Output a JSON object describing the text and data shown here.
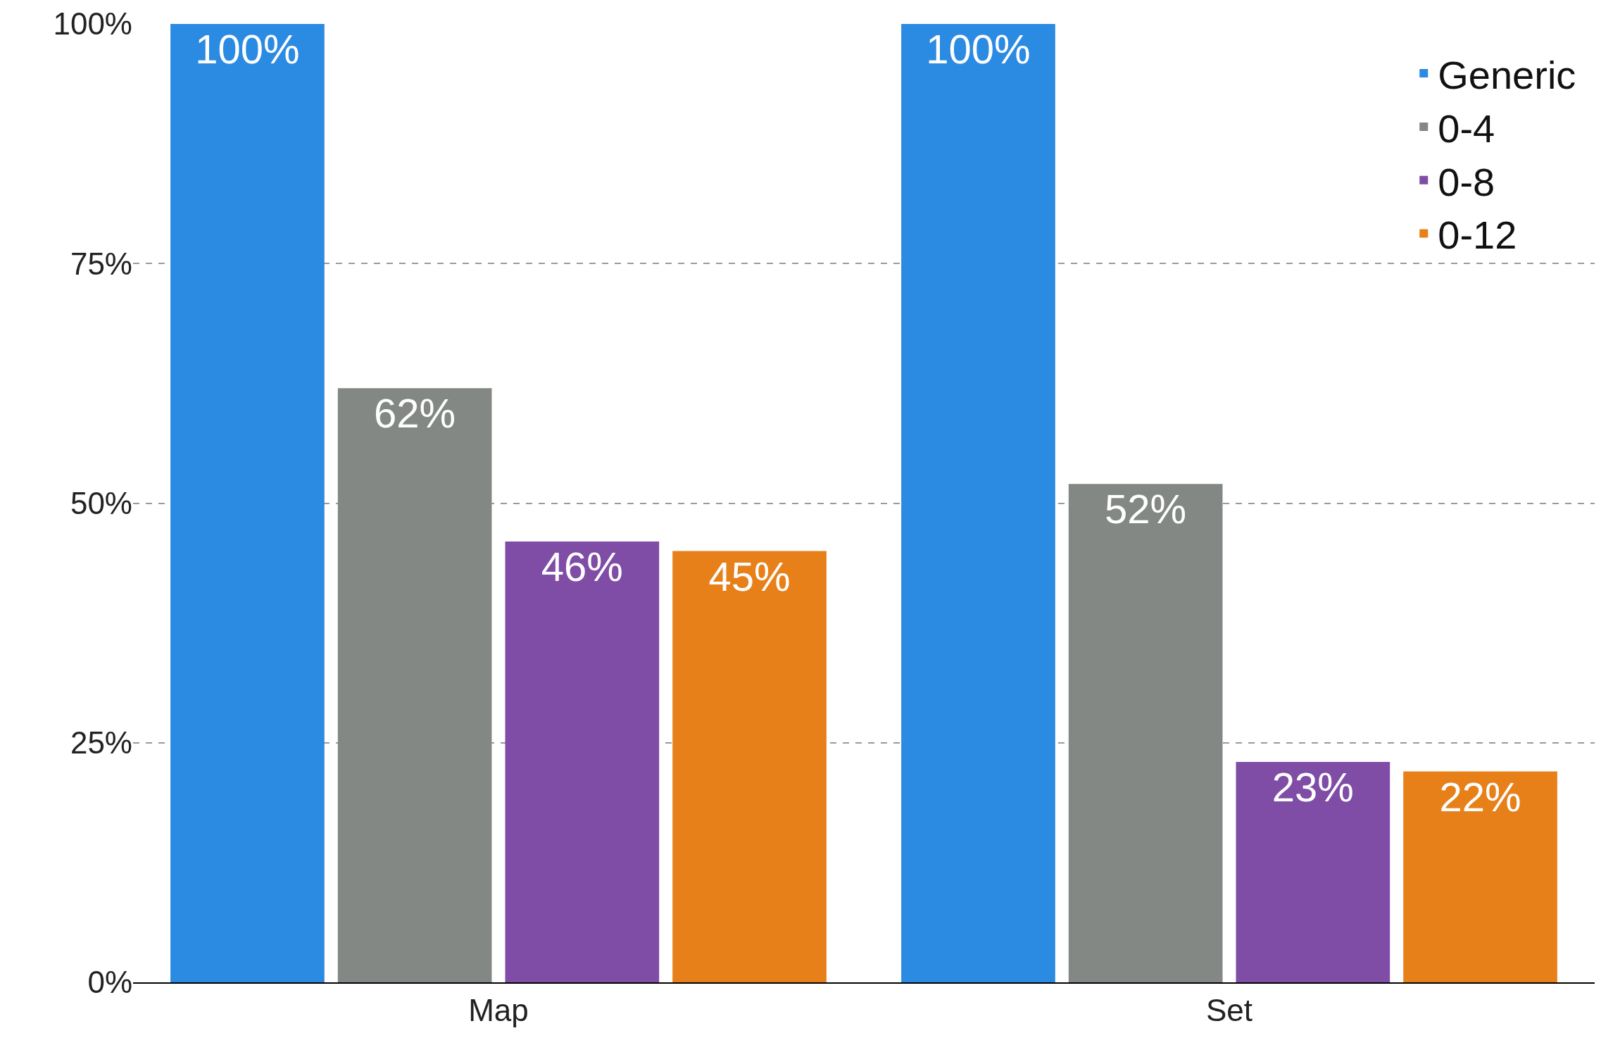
{
  "chart_data": {
    "type": "bar",
    "categories": [
      "Map",
      "Set"
    ],
    "series": [
      {
        "name": "Generic",
        "color": "#2b8ae2",
        "values": [
          100,
          100
        ],
        "value_labels": [
          "100%",
          "100%"
        ]
      },
      {
        "name": "0-4",
        "color": "#838885",
        "values": [
          62,
          52
        ],
        "value_labels": [
          "62%",
          "52%"
        ]
      },
      {
        "name": "0-8",
        "color": "#7f4ca6",
        "values": [
          46,
          23
        ],
        "value_labels": [
          "46%",
          "23%"
        ]
      },
      {
        "name": "0-12",
        "color": "#e8801a",
        "values": [
          45,
          22
        ],
        "value_labels": [
          "45%",
          "22%"
        ]
      }
    ],
    "ylim": [
      0,
      100
    ],
    "yticks": [
      {
        "value": 0,
        "label": "0%"
      },
      {
        "value": 25,
        "label": "25%"
      },
      {
        "value": 50,
        "label": "50%"
      },
      {
        "value": 75,
        "label": "75%"
      },
      {
        "value": 100,
        "label": "100%"
      }
    ],
    "grid": "y",
    "legend": "top right"
  }
}
